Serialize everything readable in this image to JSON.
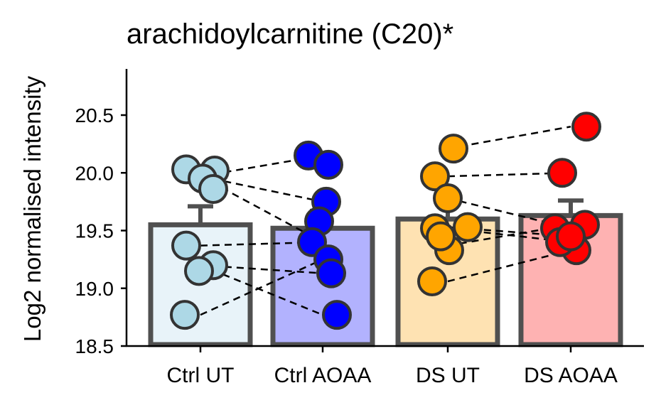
{
  "chart_data": {
    "type": "bar",
    "title": "arachidoylcarnitine (C20)*",
    "xlabel": "",
    "ylabel": "Log2 normalised intensity",
    "ylim": [
      18.5,
      20.9
    ],
    "yticks": [
      18.5,
      19.0,
      19.5,
      20.0,
      20.5
    ],
    "ytick_labels": [
      "18.5",
      "19.0",
      "19.5",
      "20.0",
      "20.5"
    ],
    "grid": false,
    "legend": "none",
    "categories": [
      "Ctrl UT",
      "Ctrl AOAA",
      "DS UT",
      "DS AOAA"
    ],
    "bar_fill_colors": [
      "#e8f3f9",
      "#b2b2fe",
      "#fee2b2",
      "#feb2b2"
    ],
    "point_colors": [
      "#add8e6",
      "#0000ff",
      "#ffa500",
      "#ff0000"
    ],
    "bar_edge_color": "#505050",
    "values": [
      19.55,
      19.52,
      19.6,
      19.63
    ],
    "errors": [
      0.16,
      0.15,
      0.13,
      0.13
    ],
    "points": [
      [
        20.03,
        20.02,
        19.95,
        19.86,
        19.37,
        19.2,
        19.15,
        18.77
      ],
      [
        20.15,
        20.07,
        19.75,
        19.58,
        19.4,
        19.25,
        19.13,
        18.77
      ],
      [
        20.21,
        19.97,
        19.78,
        19.53,
        19.52,
        19.33,
        19.06,
        19.45
      ],
      [
        20.4,
        20.0,
        19.55,
        19.52,
        19.4,
        19.33,
        19.4,
        19.45
      ]
    ],
    "pairs": [
      {
        "from": [
          0,
          19.97
        ],
        "to": [
          1,
          20.15
        ]
      },
      {
        "from": [
          0,
          19.97
        ],
        "to": [
          1,
          19.75
        ]
      },
      {
        "from": [
          0,
          19.97
        ],
        "to": [
          1,
          19.4
        ]
      },
      {
        "from": [
          0,
          19.37
        ],
        "to": [
          1,
          19.4
        ]
      },
      {
        "from": [
          0,
          19.2
        ],
        "to": [
          1,
          19.13
        ]
      },
      {
        "from": [
          0,
          19.2
        ],
        "to": [
          1,
          18.77
        ]
      },
      {
        "from": [
          0,
          18.77
        ],
        "to": [
          1,
          19.25
        ]
      },
      {
        "from": [
          2,
          20.21
        ],
        "to": [
          3,
          20.4
        ]
      },
      {
        "from": [
          2,
          19.97
        ],
        "to": [
          3,
          20.0
        ]
      },
      {
        "from": [
          2,
          19.78
        ],
        "to": [
          3,
          19.52
        ]
      },
      {
        "from": [
          2,
          19.53
        ],
        "to": [
          3,
          19.45
        ]
      },
      {
        "from": [
          2,
          19.52
        ],
        "to": [
          3,
          19.4
        ]
      },
      {
        "from": [
          2,
          19.37
        ],
        "to": [
          3,
          19.55
        ]
      },
      {
        "from": [
          2,
          19.06
        ],
        "to": [
          3,
          19.33
        ]
      }
    ]
  }
}
